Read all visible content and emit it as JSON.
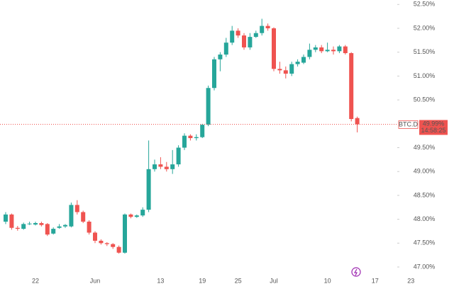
{
  "chart_data": {
    "type": "candlestick",
    "symbol": "BTC.D",
    "categories": [
      null,
      null,
      null,
      null,
      null,
      "22",
      null,
      null,
      null,
      null,
      null,
      null,
      null,
      null,
      null,
      "Jun",
      null,
      null,
      null,
      null,
      null,
      null,
      null,
      null,
      null,
      null,
      "13",
      null,
      null,
      null,
      null,
      null,
      null,
      "19",
      null,
      null,
      null,
      null,
      null,
      "25",
      null,
      null,
      null,
      null,
      null,
      "Jul",
      null,
      null,
      null,
      null,
      null,
      null,
      null,
      null,
      "10",
      null,
      null,
      null,
      null,
      null,
      null,
      null,
      "17",
      null,
      null,
      null,
      null,
      null,
      "23"
    ],
    "series": [
      {
        "name": "BTC.D",
        "up_color": "#26a69a",
        "down_color": "#ef5350",
        "open": [
          47.95,
          48.1,
          47.82,
          47.8,
          47.9,
          47.89,
          47.92,
          47.9,
          47.7,
          47.82,
          47.85,
          47.85,
          48.3,
          48.15,
          47.95,
          47.72,
          47.55,
          47.5,
          47.48,
          47.42,
          47.3,
          48.1,
          48.05,
          48.08,
          48.2,
          49.05,
          49.15,
          49.1,
          49.05,
          49.15,
          49.5,
          49.75,
          49.7,
          49.72,
          49.98,
          50.75,
          51.35,
          51.45,
          51.7,
          51.95,
          51.85,
          51.6,
          51.82,
          51.9,
          52.05,
          52.0,
          51.15,
          51.12,
          51.05,
          51.25,
          51.28,
          51.4,
          51.55,
          51.6,
          51.52,
          51.55,
          51.52,
          51.62,
          51.48,
          50.12,
          null,
          null,
          null,
          null,
          null,
          null,
          null,
          null,
          null
        ],
        "high": [
          48.15,
          48.12,
          47.86,
          47.93,
          47.95,
          47.95,
          47.95,
          47.92,
          47.83,
          47.9,
          47.9,
          48.35,
          48.4,
          48.18,
          47.98,
          47.75,
          47.58,
          47.52,
          47.5,
          47.45,
          48.12,
          48.12,
          48.1,
          48.25,
          49.65,
          49.25,
          49.3,
          49.2,
          49.45,
          49.55,
          49.8,
          49.78,
          49.78,
          50.0,
          50.8,
          51.4,
          51.5,
          51.8,
          52.05,
          52.0,
          51.9,
          51.9,
          51.95,
          52.2,
          52.1,
          52.02,
          51.3,
          51.2,
          51.3,
          51.35,
          51.45,
          51.68,
          51.65,
          51.65,
          51.7,
          51.62,
          51.65,
          51.65,
          51.5,
          50.15,
          null,
          null,
          null,
          null,
          null,
          null,
          null,
          null,
          null
        ],
        "low": [
          47.9,
          47.78,
          47.76,
          47.78,
          47.88,
          47.87,
          47.85,
          47.65,
          47.68,
          47.8,
          47.82,
          47.83,
          48.1,
          47.92,
          47.68,
          47.5,
          47.47,
          47.44,
          47.38,
          47.28,
          47.28,
          48.02,
          48.03,
          48.05,
          48.15,
          49.0,
          49.05,
          49.0,
          48.95,
          49.1,
          49.45,
          49.65,
          49.65,
          49.7,
          49.95,
          50.7,
          51.1,
          51.4,
          51.65,
          51.8,
          51.55,
          51.55,
          51.8,
          51.85,
          51.95,
          51.1,
          51.05,
          50.95,
          51.0,
          51.2,
          51.25,
          51.35,
          51.5,
          51.48,
          51.5,
          51.45,
          51.48,
          51.45,
          50.05,
          49.82,
          null,
          null,
          null,
          null,
          null,
          null,
          null,
          null,
          null
        ],
        "close": [
          48.1,
          47.82,
          47.8,
          47.9,
          47.91,
          47.92,
          47.88,
          47.68,
          47.8,
          47.85,
          47.88,
          48.3,
          48.15,
          47.95,
          47.72,
          47.55,
          47.5,
          47.48,
          47.42,
          47.3,
          48.1,
          48.05,
          48.08,
          48.2,
          49.05,
          49.15,
          49.1,
          49.05,
          49.15,
          49.5,
          49.75,
          49.7,
          49.72,
          49.98,
          50.75,
          51.35,
          51.45,
          51.7,
          51.95,
          51.85,
          51.6,
          51.82,
          51.9,
          52.05,
          52.0,
          51.15,
          51.12,
          51.05,
          51.25,
          51.3,
          51.4,
          51.55,
          51.6,
          51.52,
          51.55,
          51.52,
          51.62,
          51.48,
          50.1,
          49.99,
          null,
          null,
          null,
          null,
          null,
          null,
          null,
          null,
          null
        ]
      }
    ],
    "last_price": {
      "value": 49.99,
      "label": "49.99%"
    },
    "countdown": "14:58:25",
    "ylim": [
      46.644,
      52.593
    ],
    "yticks": [
      {
        "value": 52.5,
        "label": "52.50%"
      },
      {
        "value": 52,
        "label": "52.00%"
      },
      {
        "value": 51.5,
        "label": "51.50%"
      },
      {
        "value": 51,
        "label": "51.00%"
      },
      {
        "value": 50.5,
        "label": "50.50%"
      },
      {
        "value": 49.5,
        "label": "49.50%"
      },
      {
        "value": 49,
        "label": "49.00%"
      },
      {
        "value": 48.5,
        "label": "48.50%"
      },
      {
        "value": 48,
        "label": "48.00%"
      },
      {
        "value": 47.5,
        "label": "47.50%"
      },
      {
        "value": 47,
        "label": "47.00%"
      }
    ],
    "grid": false
  }
}
